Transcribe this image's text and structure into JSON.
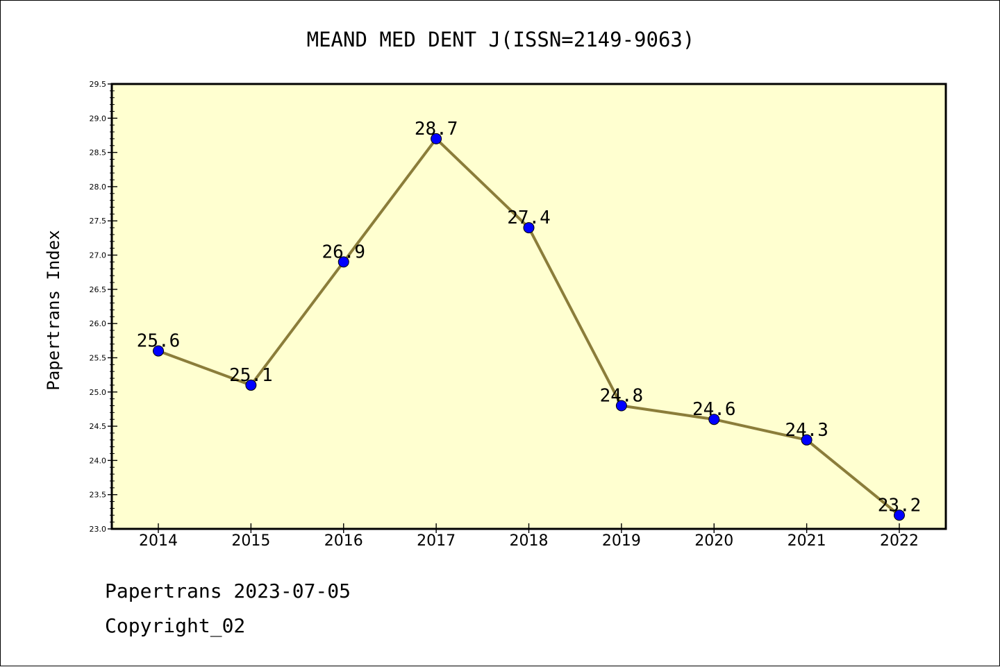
{
  "chart_data": {
    "type": "line",
    "title": "MEAND MED DENT J(ISSN=2149-9063)",
    "xlabel": "",
    "ylabel": "Papertrans Index",
    "categories": [
      "2014",
      "2015",
      "2016",
      "2017",
      "2018",
      "2019",
      "2020",
      "2021",
      "2022"
    ],
    "series": [
      {
        "values": [
          25.6,
          25.1,
          26.9,
          28.7,
          27.4,
          24.8,
          24.6,
          24.3,
          23.2
        ],
        "line_color": "#8b7d3a",
        "marker_color": "#0000ff"
      }
    ],
    "data_labels": [
      "25.6",
      "25.1",
      "26.9",
      "28.7",
      "27.4",
      "24.8",
      "24.6",
      "24.3",
      "23.2"
    ],
    "ylim": [
      23.0,
      29.5
    ],
    "yticks": [
      "23.0",
      "23.5",
      "24.0",
      "24.5",
      "25.0",
      "25.5",
      "26.0",
      "26.5",
      "27.0",
      "27.5",
      "28.0",
      "28.5",
      "29.0",
      "29.5"
    ],
    "plot_background": "#ffffd0",
    "grid": false,
    "legend": "none"
  },
  "footer": {
    "line1": "Papertrans 2023-07-05",
    "line2": "Copyright_02"
  }
}
